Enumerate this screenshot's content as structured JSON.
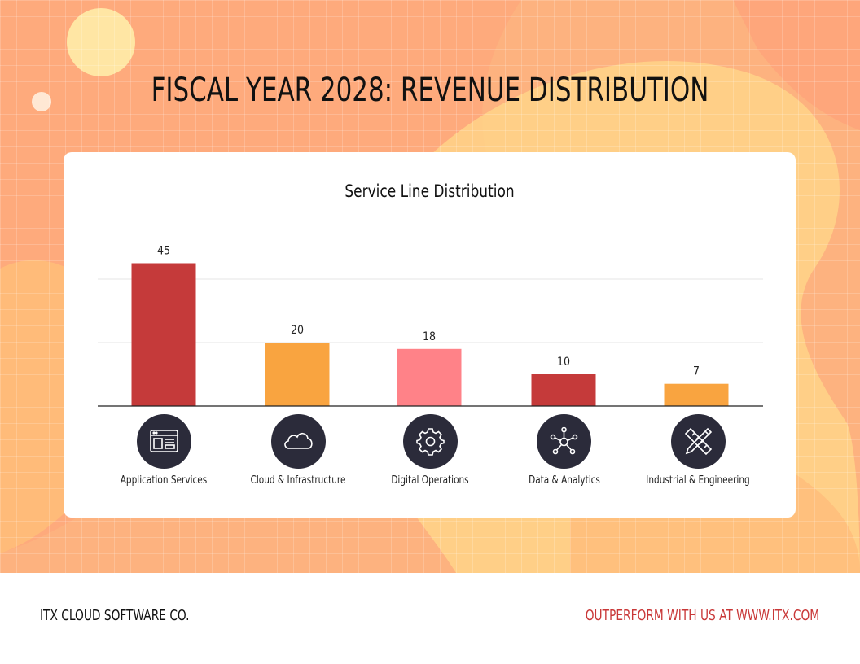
{
  "title": "FISCAL YEAR 2028: REVENUE DISTRIBUTION",
  "footer": {
    "company": "ITX CLOUD SOFTWARE CO.",
    "cta": "OUTPERFORM WITH US AT WWW.ITX.COM"
  },
  "icons": [
    "application-icon",
    "cloud-icon",
    "gear-icon",
    "network-icon",
    "ruler-pencil-icon"
  ],
  "colors": {
    "bar_red": "#c53a3a",
    "bar_orange": "#f9a440",
    "bar_pink": "#ff8288",
    "icon_bg": "#2b2b3a",
    "cta": "#c93838"
  },
  "chart_data": {
    "type": "bar",
    "title": "Service Line Distribution",
    "categories": [
      "Application Services",
      "Cloud & Infrastructure",
      "Digital Operations",
      "Data & Analytics",
      "Industrial & Engineering"
    ],
    "values": [
      45,
      20,
      18,
      10,
      7
    ],
    "data_labels": [
      "45",
      "20",
      "18",
      "10",
      "7"
    ],
    "bar_colors": [
      "#c53a3a",
      "#f9a440",
      "#ff8288",
      "#c53a3a",
      "#f9a440"
    ],
    "ylim": [
      0,
      40
    ],
    "grid": true,
    "legend": "none"
  }
}
